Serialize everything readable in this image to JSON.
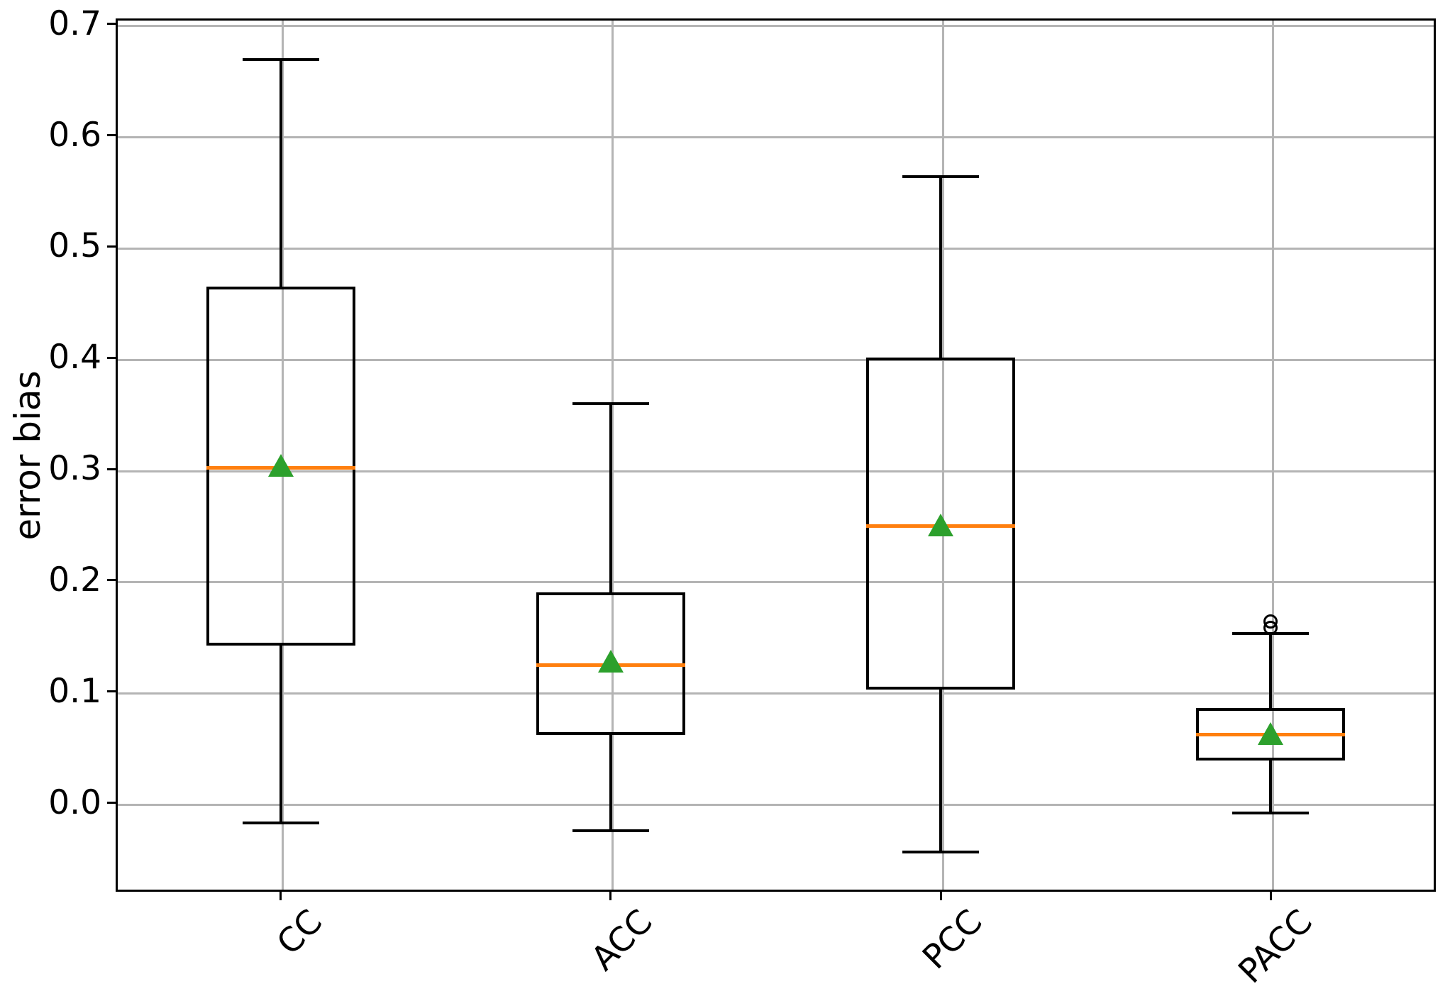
{
  "figure": {
    "background": "#ffffff",
    "colors": {
      "median_line": "#ff7f0e",
      "mean_marker": "#2ca02c",
      "box_line": "#000000",
      "grid_line": "#b4b4b4"
    }
  },
  "chart_data": {
    "type": "boxplot",
    "title": "",
    "xlabel": "",
    "ylabel": "error bias",
    "categories": [
      "CC",
      "ACC",
      "PCC",
      "PACC"
    ],
    "ylim": [
      -0.08,
      0.705
    ],
    "yticks": [
      0.0,
      0.1,
      0.2,
      0.3,
      0.4,
      0.5,
      0.6,
      0.7
    ],
    "ytick_labels": [
      "0.0",
      "0.1",
      "0.2",
      "0.3",
      "0.4",
      "0.5",
      "0.6",
      "0.7"
    ],
    "grid": true,
    "legend": "none",
    "mean_marker": "triangle-up",
    "series": [
      {
        "name": "CC",
        "whisker_low": -0.018,
        "q1": 0.141,
        "median": 0.301,
        "mean": 0.303,
        "q3": 0.464,
        "whisker_high": 0.668,
        "outliers": []
      },
      {
        "name": "ACC",
        "whisker_low": -0.025,
        "q1": 0.061,
        "median": 0.124,
        "mean": 0.127,
        "q3": 0.189,
        "whisker_high": 0.359,
        "outliers": []
      },
      {
        "name": "PCC",
        "whisker_low": -0.044,
        "q1": 0.102,
        "median": 0.249,
        "mean": 0.25,
        "q3": 0.4,
        "whisker_high": 0.563,
        "outliers": []
      },
      {
        "name": "PACC",
        "whisker_low": -0.009,
        "q1": 0.038,
        "median": 0.061,
        "mean": 0.062,
        "q3": 0.085,
        "whisker_high": 0.152,
        "outliers": [
          0.157,
          0.163
        ]
      }
    ]
  }
}
